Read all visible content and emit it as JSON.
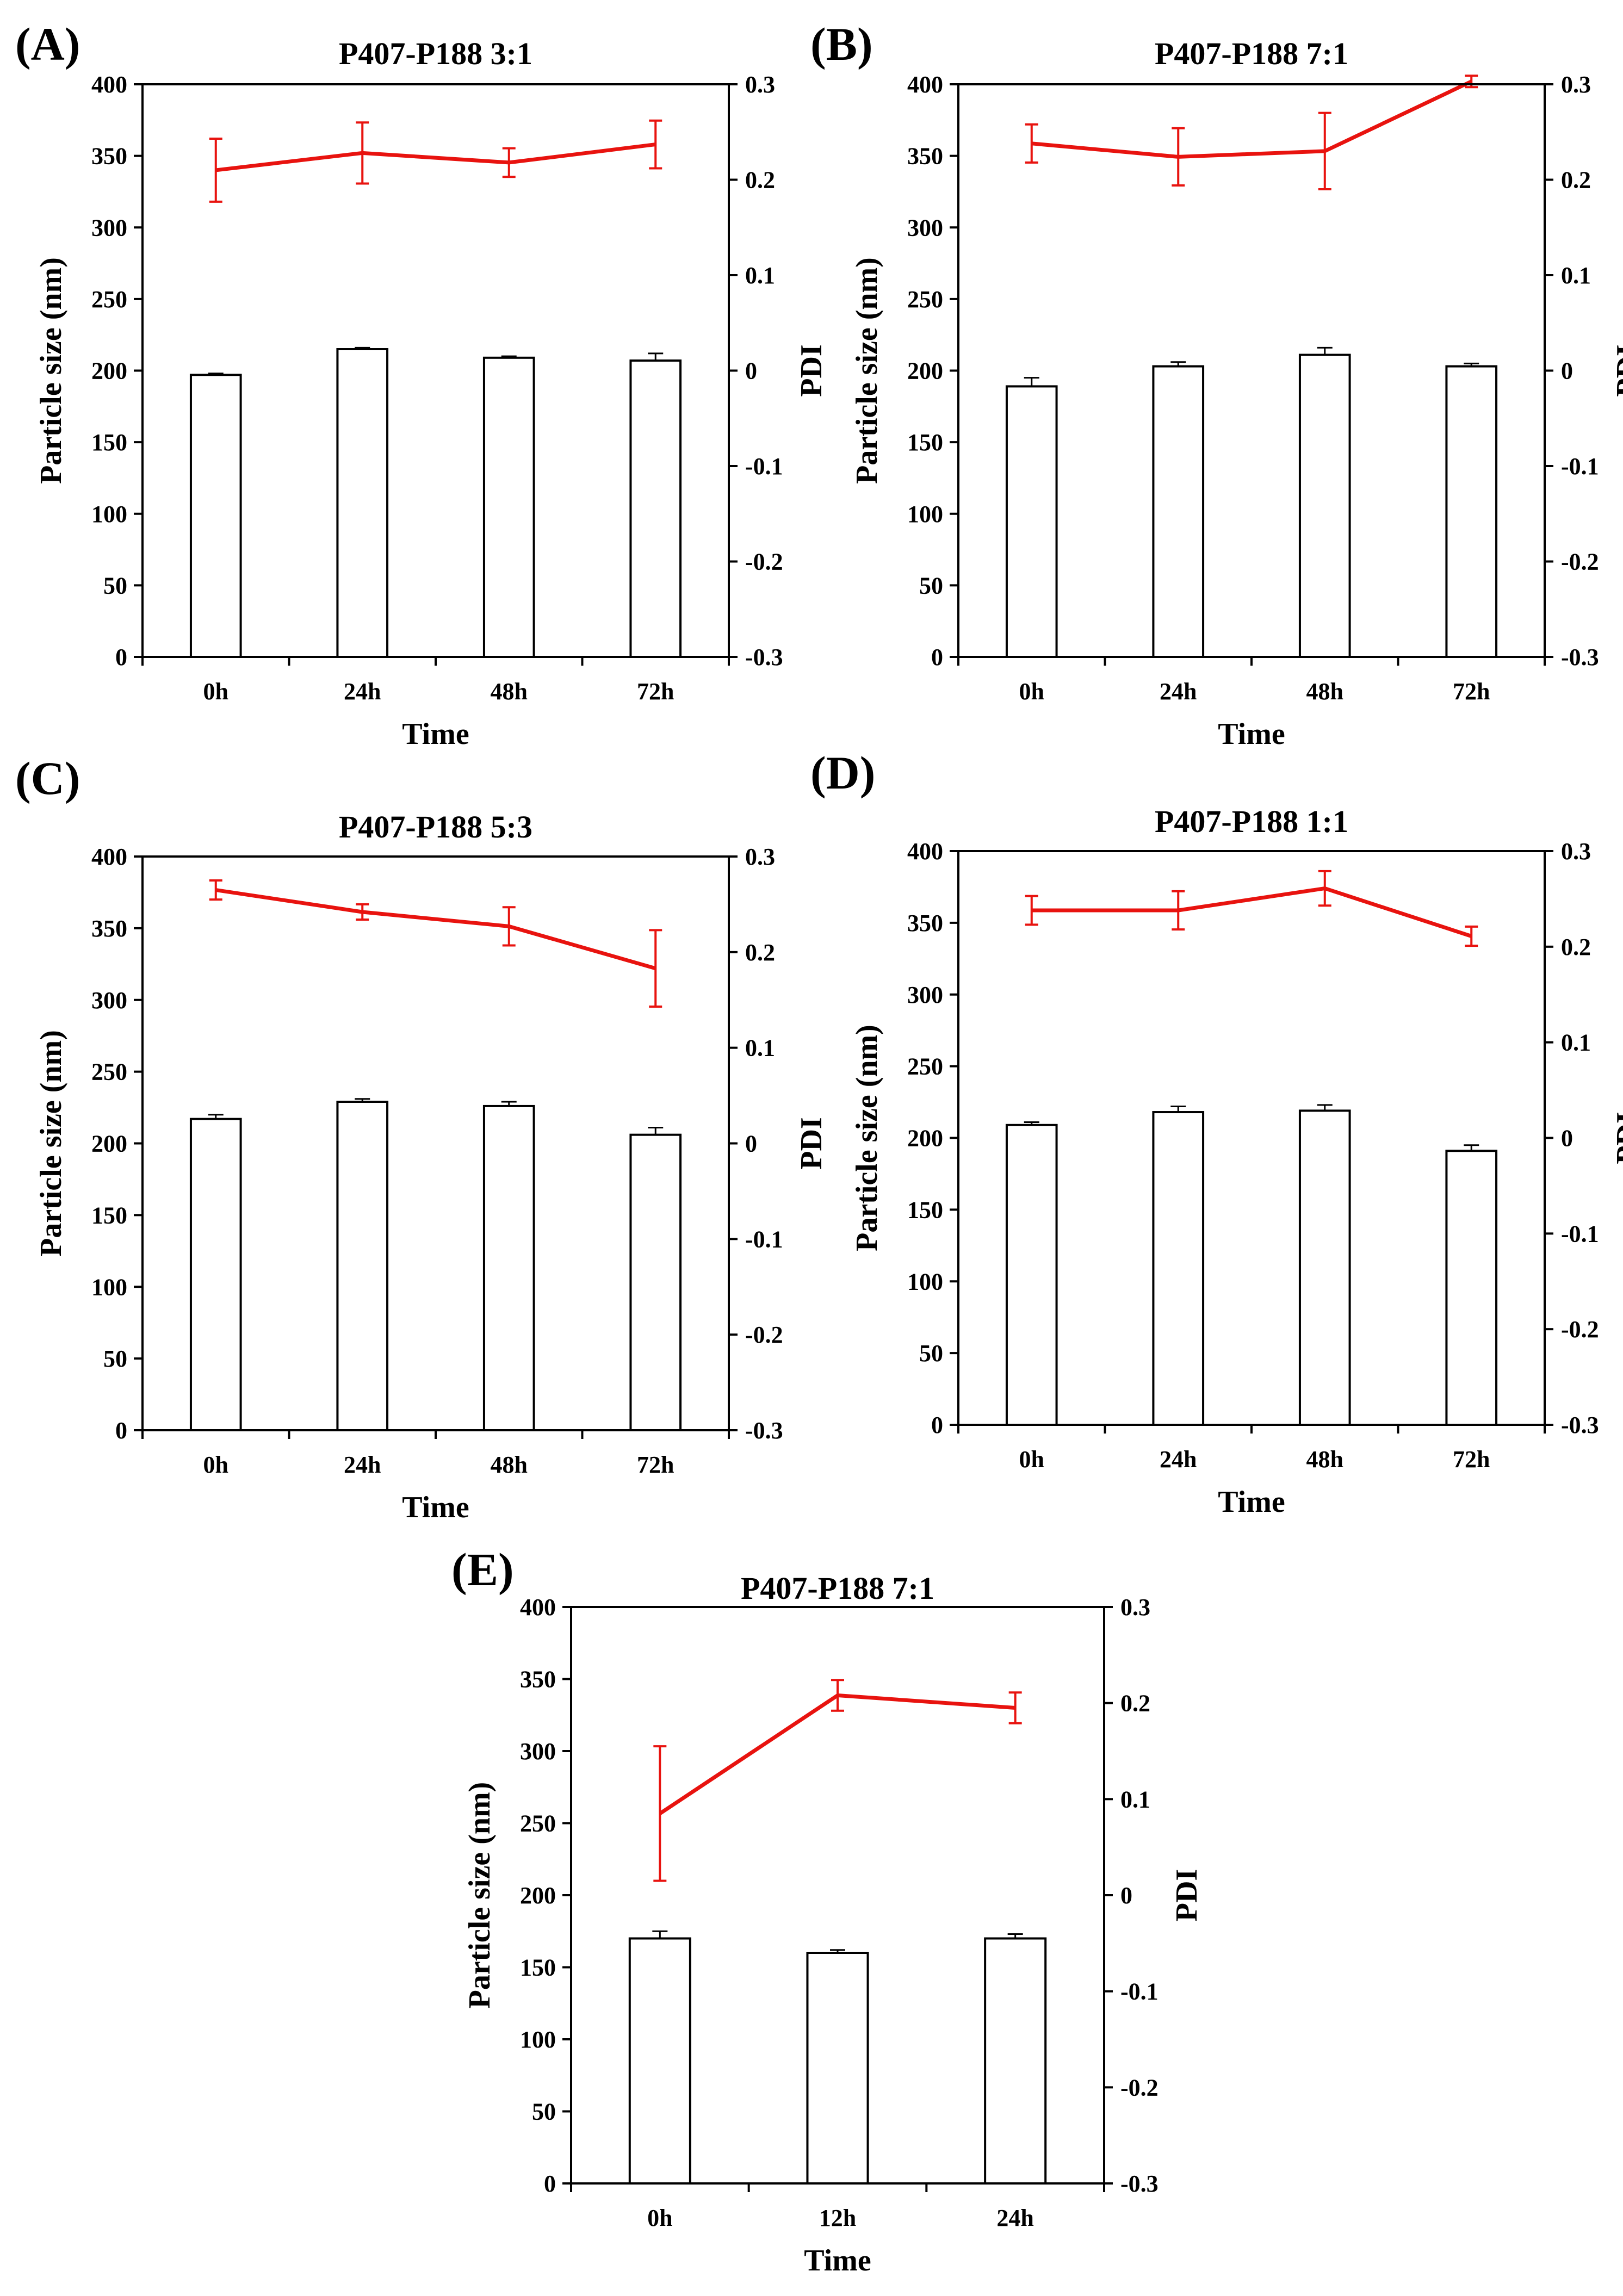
{
  "figure": {
    "colors": {
      "bar_fill": "#ffffff",
      "bar_stroke": "#000000",
      "pdi_line": "#e8130f",
      "axis": "#000000"
    }
  },
  "chart_data": [
    {
      "type": "bar",
      "panel_label": "(A)",
      "title": "P407-P188 3:1",
      "xlabel": "Time",
      "ylabel": "Particle size (nm)",
      "y2label": "PDI",
      "categories": [
        "0h",
        "24h",
        "48h",
        "72h"
      ],
      "ylim": [
        0,
        400
      ],
      "y_ticks": [
        0,
        50,
        100,
        150,
        200,
        250,
        300,
        350,
        400
      ],
      "y2lim": [
        -0.3,
        0.3
      ],
      "y2_ticks": [
        "-0.3",
        "-0.2",
        "-0.1",
        "0",
        "0.1",
        "0.2",
        "0.3"
      ],
      "grid": false,
      "series": [
        {
          "kind": "bar",
          "axis": "left",
          "values": [
            197,
            215,
            209,
            207
          ],
          "errors": [
            1,
            1,
            1,
            5
          ]
        },
        {
          "kind": "line",
          "axis": "right",
          "values": [
            0.21,
            0.228,
            0.218,
            0.237
          ],
          "errors": [
            0.033,
            0.032,
            0.015,
            0.025
          ]
        }
      ]
    },
    {
      "type": "bar",
      "panel_label": "(B)",
      "title": "P407-P188 7:1",
      "xlabel": "Time",
      "ylabel": "Particle size (nm)",
      "y2label": "PDI",
      "categories": [
        "0h",
        "24h",
        "48h",
        "72h"
      ],
      "ylim": [
        0,
        400
      ],
      "y_ticks": [
        0,
        50,
        100,
        150,
        200,
        250,
        300,
        350,
        400
      ],
      "y2lim": [
        -0.3,
        0.3
      ],
      "y2_ticks": [
        "-0.3",
        "-0.2",
        "-0.1",
        "0",
        "0.1",
        "0.2",
        "0.3"
      ],
      "grid": false,
      "series": [
        {
          "kind": "bar",
          "axis": "left",
          "values": [
            189,
            203,
            211,
            203
          ],
          "errors": [
            6,
            3,
            5,
            2
          ]
        },
        {
          "kind": "line",
          "axis": "right",
          "values": [
            0.238,
            0.224,
            0.23,
            0.303
          ],
          "errors": [
            0.02,
            0.03,
            0.04,
            0.006
          ]
        }
      ]
    },
    {
      "type": "bar",
      "panel_label": "(C)",
      "title": "P407-P188 5:3",
      "xlabel": "Time",
      "ylabel": "Particle size (nm)",
      "y2label": "PDI",
      "categories": [
        "0h",
        "24h",
        "48h",
        "72h"
      ],
      "ylim": [
        0,
        400
      ],
      "y_ticks": [
        0,
        50,
        100,
        150,
        200,
        250,
        300,
        350,
        400
      ],
      "y2lim": [
        -0.3,
        0.3
      ],
      "y2_ticks": [
        "-0.3",
        "-0.2",
        "-0.1",
        "0",
        "0.1",
        "0.2",
        "0.3"
      ],
      "grid": false,
      "series": [
        {
          "kind": "bar",
          "axis": "left",
          "values": [
            217,
            229,
            226,
            206
          ],
          "errors": [
            3,
            2,
            3,
            5
          ]
        },
        {
          "kind": "line",
          "axis": "right",
          "values": [
            0.265,
            0.242,
            0.227,
            0.183
          ],
          "errors": [
            0.01,
            0.008,
            0.02,
            0.04
          ]
        }
      ]
    },
    {
      "type": "bar",
      "panel_label": "(D)",
      "title": "P407-P188 1:1",
      "xlabel": "Time",
      "ylabel": "Particle size (nm)",
      "y2label": "PDI",
      "categories": [
        "0h",
        "24h",
        "48h",
        "72h"
      ],
      "ylim": [
        0,
        400
      ],
      "y_ticks": [
        0,
        50,
        100,
        150,
        200,
        250,
        300,
        350,
        400
      ],
      "y2lim": [
        -0.3,
        0.3
      ],
      "y2_ticks": [
        "-0.3",
        "-0.2",
        "-0.1",
        "0",
        "0.1",
        "0.2",
        "0.3"
      ],
      "grid": false,
      "series": [
        {
          "kind": "bar",
          "axis": "left",
          "values": [
            209,
            218,
            219,
            191
          ],
          "errors": [
            2,
            4,
            4,
            4
          ]
        },
        {
          "kind": "line",
          "axis": "right",
          "values": [
            0.238,
            0.238,
            0.261,
            0.211
          ],
          "errors": [
            0.015,
            0.02,
            0.018,
            0.01
          ]
        }
      ]
    },
    {
      "type": "bar",
      "panel_label": "(E)",
      "title": "P407-P188  7:1",
      "xlabel": "Time",
      "ylabel": "Particle size (nm)",
      "y2label": "PDI",
      "categories": [
        "0h",
        "12h",
        "24h"
      ],
      "ylim": [
        0,
        400
      ],
      "y_ticks": [
        0,
        50,
        100,
        150,
        200,
        250,
        300,
        350,
        400
      ],
      "y2lim": [
        -0.3,
        0.3
      ],
      "y2_ticks": [
        "-0.3",
        "-0.2",
        "-0.1",
        "0",
        "0.1",
        "0.2",
        "0.3"
      ],
      "grid": false,
      "series": [
        {
          "kind": "bar",
          "axis": "left",
          "values": [
            170,
            160,
            170
          ],
          "errors": [
            5,
            2,
            3
          ]
        },
        {
          "kind": "line",
          "axis": "right",
          "values": [
            0.085,
            0.208,
            0.195
          ],
          "errors": [
            0.07,
            0.016,
            0.016
          ]
        }
      ]
    }
  ]
}
